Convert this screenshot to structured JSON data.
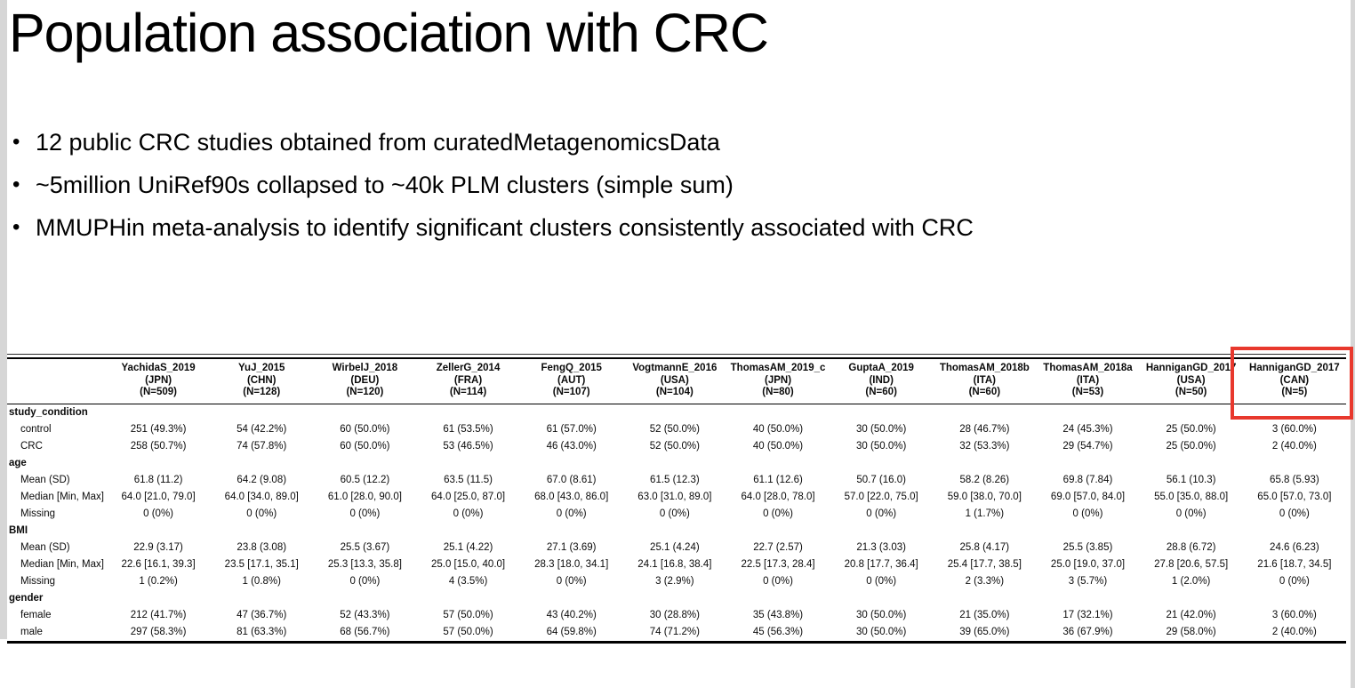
{
  "slide": {
    "title": "Population association with CRC",
    "bullets": [
      "12 public CRC studies obtained from curatedMetagenomicsData",
      "~5million UniRef90s collapsed to ~40k PLM clusters (simple sum)",
      "MMUPHin meta-analysis to identify significant clusters consistently associated with CRC"
    ]
  },
  "annotation": {
    "type": "red-rectangle",
    "highlighted_column": "HanniganGD_2017 (CAN) (N=5)",
    "color": "#e8382d"
  },
  "table": {
    "columns": [
      {
        "study": "YachidaS_2019",
        "country": "(JPN)",
        "n": "(N=509)"
      },
      {
        "study": "YuJ_2015",
        "country": "(CHN)",
        "n": "(N=128)"
      },
      {
        "study": "WirbelJ_2018",
        "country": "(DEU)",
        "n": "(N=120)"
      },
      {
        "study": "ZellerG_2014",
        "country": "(FRA)",
        "n": "(N=114)"
      },
      {
        "study": "FengQ_2015",
        "country": "(AUT)",
        "n": "(N=107)"
      },
      {
        "study": "VogtmannE_2016",
        "country": "(USA)",
        "n": "(N=104)"
      },
      {
        "study": "ThomasAM_2019_c",
        "country": "(JPN)",
        "n": "(N=80)"
      },
      {
        "study": "GuptaA_2019",
        "country": "(IND)",
        "n": "(N=60)"
      },
      {
        "study": "ThomasAM_2018b",
        "country": "(ITA)",
        "n": "(N=60)"
      },
      {
        "study": "ThomasAM_2018a",
        "country": "(ITA)",
        "n": "(N=53)"
      },
      {
        "study": "HanniganGD_2017",
        "country": "(USA)",
        "n": "(N=50)"
      },
      {
        "study": "HanniganGD_2017",
        "country": "(CAN)",
        "n": "(N=5)"
      }
    ],
    "rows": [
      {
        "label": "study_condition",
        "group": true,
        "values": []
      },
      {
        "label": "control",
        "group": false,
        "values": [
          "251 (49.3%)",
          "54 (42.2%)",
          "60 (50.0%)",
          "61 (53.5%)",
          "61 (57.0%)",
          "52 (50.0%)",
          "40 (50.0%)",
          "30 (50.0%)",
          "28 (46.7%)",
          "24 (45.3%)",
          "25 (50.0%)",
          "3 (60.0%)"
        ]
      },
      {
        "label": "CRC",
        "group": false,
        "values": [
          "258 (50.7%)",
          "74 (57.8%)",
          "60 (50.0%)",
          "53 (46.5%)",
          "46 (43.0%)",
          "52 (50.0%)",
          "40 (50.0%)",
          "30 (50.0%)",
          "32 (53.3%)",
          "29 (54.7%)",
          "25 (50.0%)",
          "2 (40.0%)"
        ]
      },
      {
        "label": "age",
        "group": true,
        "values": []
      },
      {
        "label": "Mean (SD)",
        "group": false,
        "values": [
          "61.8 (11.2)",
          "64.2 (9.08)",
          "60.5 (12.2)",
          "63.5 (11.5)",
          "67.0 (8.61)",
          "61.5 (12.3)",
          "61.1 (12.6)",
          "50.7 (16.0)",
          "58.2 (8.26)",
          "69.8 (7.84)",
          "56.1 (10.3)",
          "65.8 (5.93)"
        ]
      },
      {
        "label": "Median [Min, Max]",
        "group": false,
        "values": [
          "64.0 [21.0, 79.0]",
          "64.0 [34.0, 89.0]",
          "61.0 [28.0, 90.0]",
          "64.0 [25.0, 87.0]",
          "68.0 [43.0, 86.0]",
          "63.0 [31.0, 89.0]",
          "64.0 [28.0, 78.0]",
          "57.0 [22.0, 75.0]",
          "59.0 [38.0, 70.0]",
          "69.0 [57.0, 84.0]",
          "55.0 [35.0, 88.0]",
          "65.0 [57.0, 73.0]"
        ]
      },
      {
        "label": "Missing",
        "group": false,
        "values": [
          "0 (0%)",
          "0 (0%)",
          "0 (0%)",
          "0 (0%)",
          "0 (0%)",
          "0 (0%)",
          "0 (0%)",
          "0 (0%)",
          "1 (1.7%)",
          "0 (0%)",
          "0 (0%)",
          "0 (0%)"
        ]
      },
      {
        "label": "BMI",
        "group": true,
        "values": []
      },
      {
        "label": "Mean (SD)",
        "group": false,
        "values": [
          "22.9 (3.17)",
          "23.8 (3.08)",
          "25.5 (3.67)",
          "25.1 (4.22)",
          "27.1 (3.69)",
          "25.1 (4.24)",
          "22.7 (2.57)",
          "21.3 (3.03)",
          "25.8 (4.17)",
          "25.5 (3.85)",
          "28.8 (6.72)",
          "24.6 (6.23)"
        ]
      },
      {
        "label": "Median [Min, Max]",
        "group": false,
        "values": [
          "22.6 [16.1, 39.3]",
          "23.5 [17.1, 35.1]",
          "25.3 [13.3, 35.8]",
          "25.0 [15.0, 40.0]",
          "28.3 [18.0, 34.1]",
          "24.1 [16.8, 38.4]",
          "22.5 [17.3, 28.4]",
          "20.8 [17.7, 36.4]",
          "25.4 [17.7, 38.5]",
          "25.0 [19.0, 37.0]",
          "27.8 [20.6, 57.5]",
          "21.6 [18.7, 34.5]"
        ]
      },
      {
        "label": "Missing",
        "group": false,
        "values": [
          "1 (0.2%)",
          "1 (0.8%)",
          "0 (0%)",
          "4 (3.5%)",
          "0 (0%)",
          "3 (2.9%)",
          "0 (0%)",
          "0 (0%)",
          "2 (3.3%)",
          "3 (5.7%)",
          "1 (2.0%)",
          "0 (0%)"
        ]
      },
      {
        "label": "gender",
        "group": true,
        "values": []
      },
      {
        "label": "female",
        "group": false,
        "values": [
          "212 (41.7%)",
          "47 (36.7%)",
          "52 (43.3%)",
          "57 (50.0%)",
          "43 (40.2%)",
          "30 (28.8%)",
          "35 (43.8%)",
          "30 (50.0%)",
          "21 (35.0%)",
          "17 (32.1%)",
          "21 (42.0%)",
          "3 (60.0%)"
        ]
      },
      {
        "label": "male",
        "group": false,
        "values": [
          "297 (58.3%)",
          "81 (63.3%)",
          "68 (56.7%)",
          "57 (50.0%)",
          "64 (59.8%)",
          "74 (71.2%)",
          "45 (56.3%)",
          "30 (50.0%)",
          "39 (65.0%)",
          "36 (67.9%)",
          "29 (58.0%)",
          "2 (40.0%)"
        ]
      }
    ]
  }
}
